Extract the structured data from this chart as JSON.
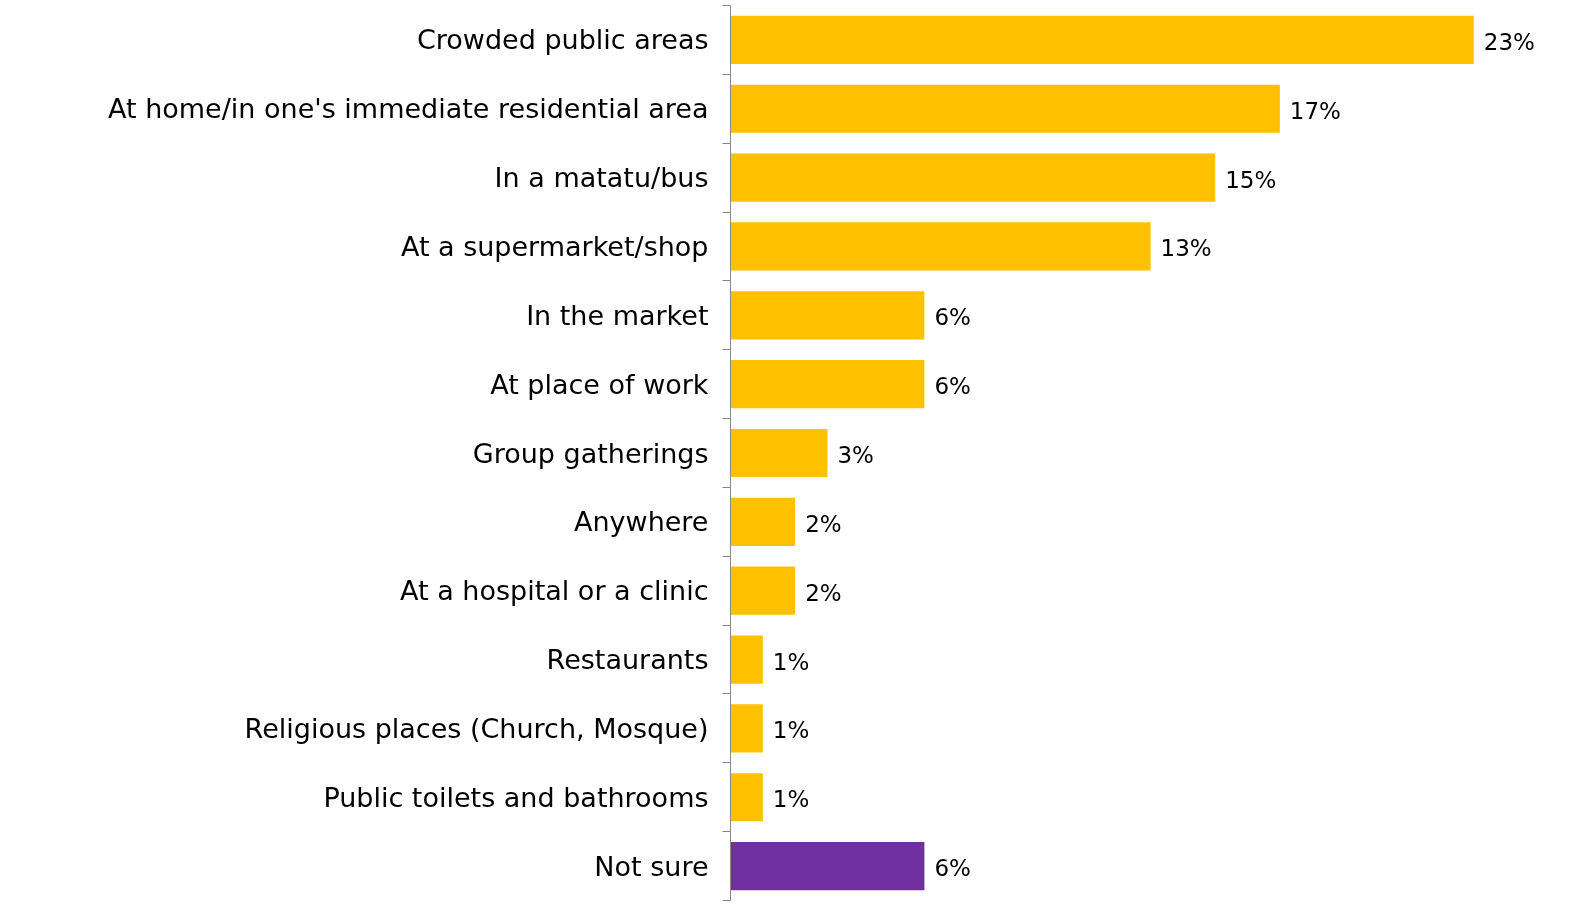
{
  "chart_data": {
    "type": "bar",
    "orientation": "horizontal",
    "categories": [
      "Crowded public areas",
      "At home/in one's immediate residential area",
      "In a matatu/bus",
      "At a supermarket/shop",
      "In the market",
      "At place of work",
      "Group gatherings",
      "Anywhere",
      "At a hospital or a clinic",
      "Restaurants",
      "Religious places (Church, Mosque)",
      "Public toilets and bathrooms",
      "Not sure"
    ],
    "values": [
      23,
      17,
      15,
      13,
      6,
      6,
      3,
      2,
      2,
      1,
      1,
      1,
      6
    ],
    "value_labels": [
      "23%",
      "17%",
      "15%",
      "13%",
      "6%",
      "6%",
      "3%",
      "2%",
      "2%",
      "1%",
      "1%",
      "1%",
      "6%"
    ],
    "colors": [
      "#ffc000",
      "#ffc000",
      "#ffc000",
      "#ffc000",
      "#ffc000",
      "#ffc000",
      "#ffc000",
      "#ffc000",
      "#ffc000",
      "#ffc000",
      "#ffc000",
      "#ffc000",
      "#7030a0"
    ],
    "grid": false,
    "tick_labels": "y"
  }
}
